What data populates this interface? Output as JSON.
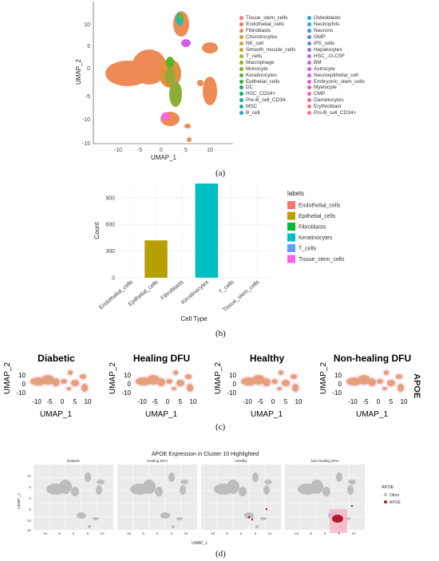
{
  "figure": {
    "captions": [
      "(a)",
      "(b)",
      "(c)",
      "(d)"
    ]
  },
  "panel_a": {
    "xlabel": "UMAP_1",
    "ylabel": "UMAP_2",
    "xticks": [
      "-10",
      "-5",
      "0",
      "5",
      "10"
    ],
    "yticks": [
      "10",
      "5",
      "0",
      "-5",
      "-10",
      "-15"
    ],
    "legend_col1": [
      {
        "label": "Tissue_stem_cells",
        "color": "#f08080"
      },
      {
        "label": "Endothelial_cells",
        "color": "#f07a4a"
      },
      {
        "label": "Fibroblasts",
        "color": "#e8875a"
      },
      {
        "label": "Chondrocytes",
        "color": "#e0943a"
      },
      {
        "label": "NK_cell",
        "color": "#d4a030"
      },
      {
        "label": "Smooth_muscle_cells",
        "color": "#c4a828"
      },
      {
        "label": "T_cells",
        "color": "#b0ac20"
      },
      {
        "label": "Macrophage",
        "color": "#98b020"
      },
      {
        "label": "Monocyte",
        "color": "#7cb420"
      },
      {
        "label": "Keratinocytes",
        "color": "#58b428"
      },
      {
        "label": "Epithelial_cells",
        "color": "#2cb438"
      },
      {
        "label": "DC",
        "color": "#14b050"
      },
      {
        "label": "HSC_CD34+",
        "color": "#10b070"
      },
      {
        "label": "Pre-B_cell_CD34-",
        "color": "#10b090"
      },
      {
        "label": "MSC",
        "color": "#14b0a8"
      },
      {
        "label": "B_cell",
        "color": "#18b0c0"
      }
    ],
    "legend_col2": [
      {
        "label": "Osteoblasts",
        "color": "#18acd4"
      },
      {
        "label": "Neutrophils",
        "color": "#20a4e4"
      },
      {
        "label": "Neurons",
        "color": "#3098ec"
      },
      {
        "label": "GMP",
        "color": "#4c8cf0"
      },
      {
        "label": "iPS_cells",
        "color": "#6c80f4"
      },
      {
        "label": "Hepatocytes",
        "color": "#8c74f4"
      },
      {
        "label": "HSC_-G-CSF",
        "color": "#a86cf0"
      },
      {
        "label": "BM",
        "color": "#c064ec"
      },
      {
        "label": "Astrocyte",
        "color": "#d45ce4"
      },
      {
        "label": "Neuroepithelial_cell",
        "color": "#e258d4"
      },
      {
        "label": "Embryonic_stem_cells",
        "color": "#ec58c0"
      },
      {
        "label": "Myelocyte",
        "color": "#f05cac"
      },
      {
        "label": "CMP",
        "color": "#f26496"
      },
      {
        "label": "Gametocytes",
        "color": "#f26c84"
      },
      {
        "label": "Erythroblast",
        "color": "#f27474"
      },
      {
        "label": "Pro-B_cell_CD34+",
        "color": "#f07c7c"
      }
    ]
  },
  "chart_data": {
    "type": "bar",
    "categories": [
      "Endothelial_cells",
      "Epithelial_cells",
      "Fibroblasts",
      "Keratinocytes",
      "T_cells",
      "Tissue_stem_cells"
    ],
    "values": [
      0,
      420,
      0,
      1060,
      0,
      0
    ],
    "colors": [
      "#f8766d",
      "#b79f00",
      "#00ba38",
      "#00bfc4",
      "#619cff",
      "#f564e3"
    ],
    "xlabel": "Cell Type",
    "ylabel": "Count",
    "ylim": [
      0,
      1060
    ],
    "yticks": [
      "0",
      "300",
      "600",
      "900"
    ],
    "grid": true,
    "legend_title": "labels",
    "legend_position": "right"
  },
  "panel_c": {
    "titles": [
      "Diabetic",
      "Healing DFU",
      "Healthy",
      "Non-healing DFU"
    ],
    "side_label": "APOE",
    "xlabel": "UMAP_1",
    "ylabel": "UMAP_2",
    "xticks": [
      "-10",
      "-5",
      "0",
      "5",
      "10"
    ],
    "yticks": [
      "10",
      "0",
      "-10"
    ]
  },
  "panel_d": {
    "title": "APOE Expression in Cluster 10 Highlighted",
    "facets": [
      "Diabetic",
      "Healing DFU",
      "Healthy",
      "Non-healing DFU"
    ],
    "xlabel": "UMAP_1",
    "ylabel": "UMAP_2",
    "xticks": [
      "-10",
      "-5",
      "0",
      "5",
      "10"
    ],
    "yticks": [
      "10",
      "5",
      "0",
      "-5",
      "-10",
      "-15"
    ],
    "legend_title": "APOE",
    "legend": [
      {
        "label": "Other",
        "color": "#bdbdbd"
      },
      {
        "label": "APOE",
        "color": "#b2182b"
      }
    ]
  }
}
